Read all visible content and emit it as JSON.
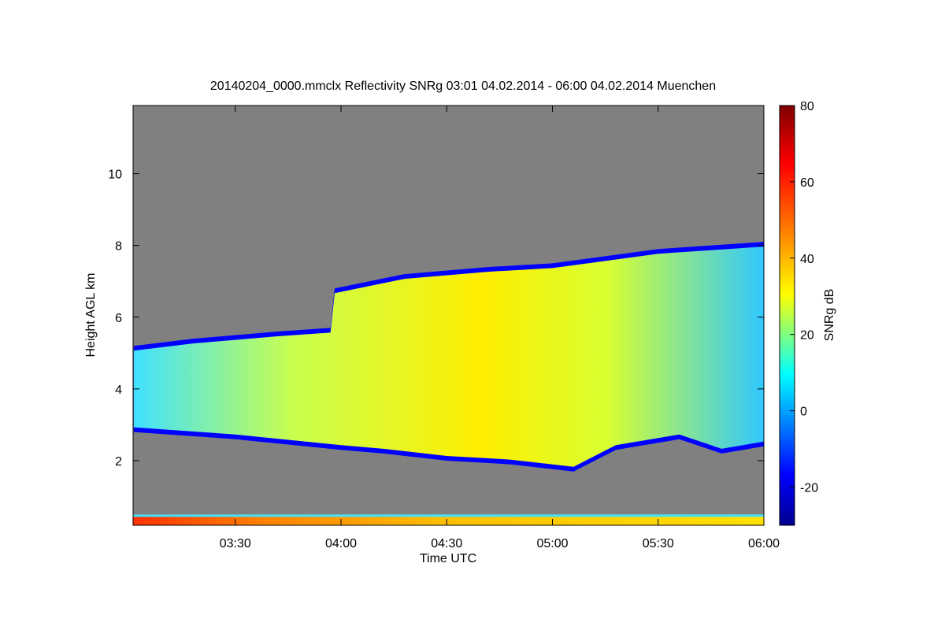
{
  "chart_data": {
    "type": "heatmap",
    "title": "20140204_0000.mmclx Reflectivity SNRg   03:01 04.02.2014 - 06:00 04.02.2014 Muenchen",
    "xlabel": "Time UTC",
    "ylabel": "Height AGL km",
    "x_tick_labels": [
      "03:30",
      "04:00",
      "04:30",
      "05:00",
      "05:30",
      "06:00"
    ],
    "x_ticks_hours": [
      3.5,
      4.0,
      4.5,
      5.0,
      5.5,
      6.0
    ],
    "xlim_hours": [
      3.0167,
      6.0
    ],
    "y_tick_labels": [
      "2",
      "4",
      "6",
      "8",
      "10"
    ],
    "y_ticks": [
      2,
      4,
      6,
      8,
      10
    ],
    "ylim": [
      0.2,
      11.9
    ],
    "colorbar": {
      "label": "SNRg dB",
      "tick_labels": [
        "80",
        "60",
        "40",
        "20",
        "0",
        "-20"
      ],
      "ticks": [
        80,
        60,
        40,
        20,
        0,
        -20
      ],
      "range": [
        -30,
        80
      ]
    },
    "colors": {
      "background_no_signal": "#808080",
      "low": "#00008f",
      "mid": "#00ffff",
      "high": "#ffff00",
      "max": "#800000"
    },
    "cloud_top_km": [
      [
        3.02,
        5.2
      ],
      [
        3.3,
        5.4
      ],
      [
        3.7,
        5.6
      ],
      [
        3.95,
        5.7
      ],
      [
        3.97,
        6.8
      ],
      [
        4.3,
        7.2
      ],
      [
        4.7,
        7.4
      ],
      [
        5.0,
        7.5
      ],
      [
        5.5,
        7.9
      ],
      [
        6.0,
        8.1
      ]
    ],
    "cloud_base_km": [
      [
        3.02,
        2.8
      ],
      [
        3.5,
        2.6
      ],
      [
        4.0,
        2.3
      ],
      [
        4.2,
        2.2
      ],
      [
        4.5,
        2.0
      ],
      [
        4.8,
        1.9
      ],
      [
        5.1,
        1.7
      ],
      [
        5.3,
        2.3
      ],
      [
        5.6,
        2.6
      ],
      [
        5.8,
        2.2
      ],
      [
        6.0,
        2.4
      ]
    ],
    "clutter_layer_km": [
      0.2,
      0.5
    ]
  }
}
